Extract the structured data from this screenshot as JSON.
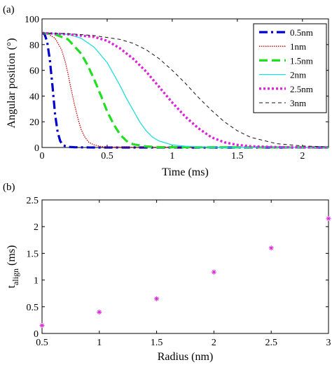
{
  "chart_data": [
    {
      "panel_label": "(a)",
      "type": "line",
      "xlabel": "Time (ms)",
      "ylabel": "Angular position (°)",
      "xlim": [
        0,
        2.2
      ],
      "ylim": [
        0,
        100
      ],
      "xticks": [
        0,
        0.5,
        1,
        1.5,
        2
      ],
      "xtick_labels": [
        "0",
        "0.5",
        "1",
        "1.5",
        "2"
      ],
      "yticks": [
        0,
        20,
        40,
        60,
        80,
        100
      ],
      "ytick_labels": [
        "0",
        "20",
        "40",
        "60",
        "80",
        "100"
      ],
      "legend_position": "top-right",
      "grid": false,
      "series": [
        {
          "name": "0.5nm",
          "color": "#0000cc",
          "dash": "dashdot",
          "width": 3.2,
          "x": [
            0,
            0.02,
            0.04,
            0.06,
            0.08,
            0.1,
            0.12,
            0.14,
            0.16,
            0.18,
            0.2,
            0.25,
            0.3,
            0.4,
            2.2
          ],
          "y": [
            89,
            88,
            82,
            68,
            48,
            26,
            12,
            5,
            2,
            1,
            0.5,
            0.2,
            0.1,
            0,
            0
          ]
        },
        {
          "name": "1nm",
          "color": "#cc0000",
          "dash": "dotted",
          "width": 1.3,
          "x": [
            0,
            0.05,
            0.1,
            0.15,
            0.18,
            0.2,
            0.22,
            0.25,
            0.28,
            0.3,
            0.33,
            0.36,
            0.4,
            0.45,
            0.5,
            2.2
          ],
          "y": [
            89,
            88,
            85,
            76,
            66,
            57,
            47,
            33,
            21,
            14,
            8,
            4,
            2,
            0.8,
            0.3,
            0
          ]
        },
        {
          "name": "1.5nm",
          "color": "#22dd22",
          "dash": "dashed",
          "width": 3.2,
          "x": [
            0,
            0.1,
            0.2,
            0.3,
            0.35,
            0.4,
            0.45,
            0.5,
            0.55,
            0.6,
            0.65,
            0.7,
            0.8,
            0.9,
            2.2
          ],
          "y": [
            89,
            88,
            84,
            73,
            64,
            53,
            41,
            28,
            18,
            10,
            5,
            2.5,
            0.8,
            0.2,
            0
          ]
        },
        {
          "name": "2nm",
          "color": "#22dddd",
          "dash": "solid",
          "width": 1.3,
          "x": [
            0,
            0.2,
            0.3,
            0.4,
            0.5,
            0.55,
            0.6,
            0.65,
            0.7,
            0.75,
            0.8,
            0.85,
            0.9,
            1.0,
            1.1,
            1.2,
            1.4,
            2.2
          ],
          "y": [
            89,
            88,
            85,
            78,
            66,
            57,
            48,
            38,
            29,
            20,
            13,
            8,
            5,
            2,
            1,
            0.5,
            0.1,
            0
          ]
        },
        {
          "name": "2.5nm",
          "color": "#dd22dd",
          "dash": "dotted",
          "width": 3.4,
          "x": [
            0,
            0.2,
            0.4,
            0.5,
            0.6,
            0.7,
            0.8,
            0.9,
            1.0,
            1.1,
            1.2,
            1.3,
            1.4,
            1.5,
            1.6,
            1.8,
            2.2
          ],
          "y": [
            89,
            88,
            86,
            83,
            77,
            69,
            59,
            47,
            35,
            24,
            15,
            8,
            4,
            2,
            1,
            0.3,
            0
          ]
        },
        {
          "name": "3nm",
          "color": "#111111",
          "dash": "dashed-thin",
          "width": 1.0,
          "x": [
            0,
            0.2,
            0.4,
            0.6,
            0.7,
            0.8,
            0.9,
            1.0,
            1.1,
            1.2,
            1.3,
            1.4,
            1.5,
            1.6,
            1.8,
            2.0,
            2.2
          ],
          "y": [
            89,
            88.5,
            87,
            84,
            81,
            76,
            69,
            60,
            50,
            39,
            29,
            20,
            13,
            8,
            3,
            1.2,
            0.5
          ]
        }
      ]
    },
    {
      "panel_label": "(b)",
      "type": "scatter",
      "xlabel": "Radius (nm)",
      "ylabel_main": "t",
      "ylabel_sub": "align",
      "ylabel_unit": " (ms)",
      "xlim": [
        0.5,
        3
      ],
      "ylim": [
        0,
        2.5
      ],
      "xticks": [
        0.5,
        1,
        1.5,
        2,
        2.5,
        3
      ],
      "xtick_labels": [
        "0.5",
        "1",
        "1.5",
        "2",
        "2.5",
        "3"
      ],
      "yticks": [
        0,
        0.5,
        1,
        1.5,
        2,
        2.5
      ],
      "ytick_labels": [
        "0",
        "0.5",
        "1",
        "1.5",
        "2",
        "2.5"
      ],
      "grid": false,
      "marker": "asterisk",
      "color": "#dd22dd",
      "x": [
        0.5,
        1,
        1.5,
        2,
        2.5,
        3
      ],
      "y": [
        0.15,
        0.4,
        0.65,
        1.15,
        1.6,
        2.15
      ]
    }
  ]
}
